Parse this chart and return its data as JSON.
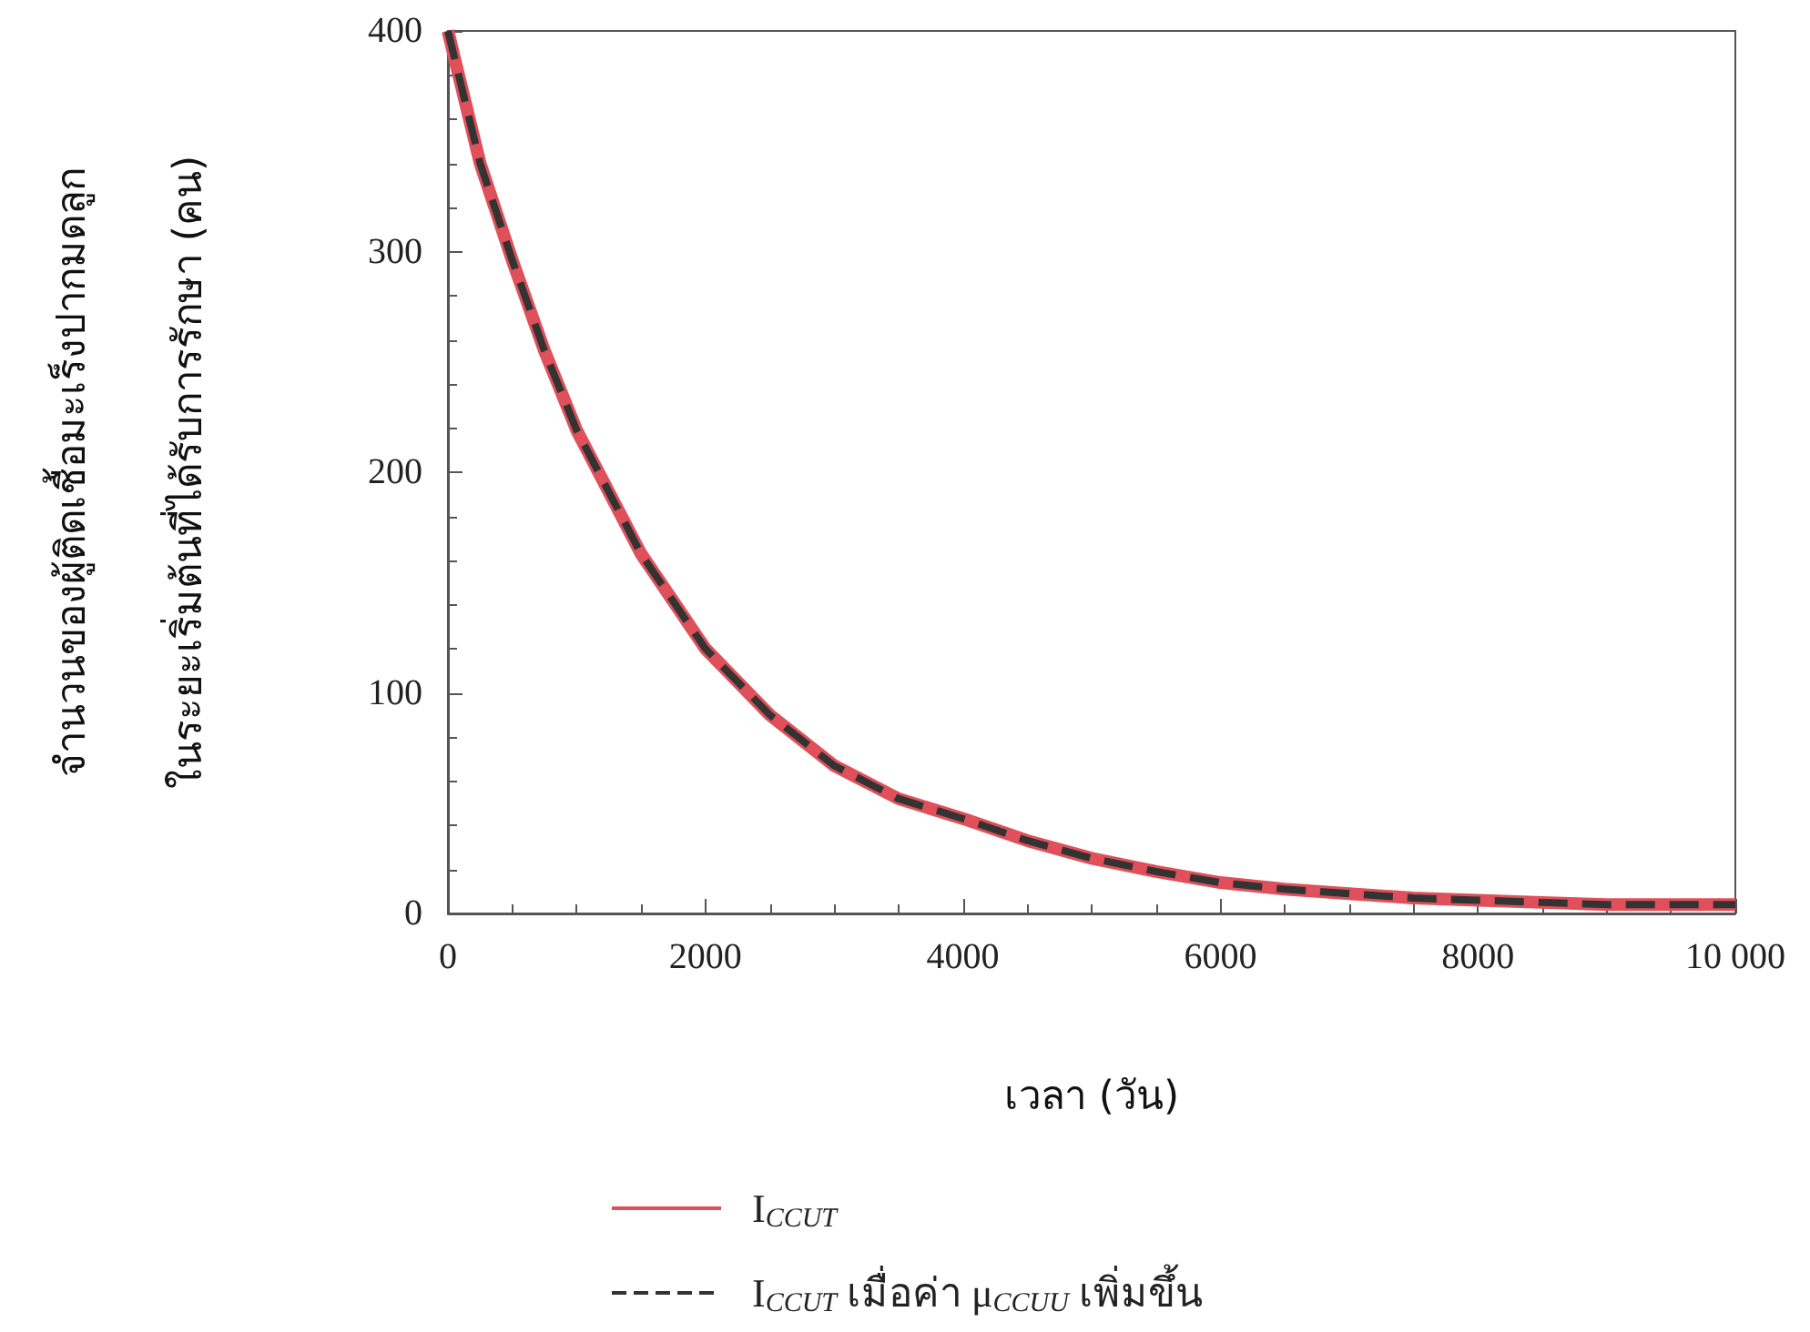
{
  "chart_data": {
    "type": "line",
    "xlabel": "เวลา (วัน)",
    "ylabel": "จำนวนของผู้ติดเชื้อมะเร็งปากมดลูก\nในระยะเริ่มต้นที่ได้รับการรักษา (คน)",
    "x": [
      0,
      250,
      500,
      750,
      1000,
      1500,
      2000,
      2500,
      3000,
      3500,
      4000,
      4500,
      5000,
      5500,
      6000,
      6500,
      7000,
      7500,
      8000,
      8500,
      9000,
      9500,
      10000
    ],
    "series": [
      {
        "name": "I$_{CCUT}$",
        "color": "#e0505a",
        "line_style": "solid",
        "values": [
          400,
          340,
          296,
          255,
          219,
          163,
          120,
          90,
          67,
          52,
          43,
          33,
          25,
          19,
          14,
          11,
          9,
          7,
          6,
          5,
          4,
          4,
          4
        ]
      },
      {
        "name": "I$_{CCUT}$ เมื่อค่า μ$_{CCUU}$ เพิ่มขึ้น",
        "color": "#333333",
        "line_style": "dashed",
        "values": [
          400,
          340,
          296,
          255,
          219,
          163,
          120,
          90,
          67,
          52,
          43,
          33,
          25,
          19,
          14,
          11,
          9,
          7,
          6,
          5,
          4,
          4,
          4
        ]
      }
    ],
    "xlim": [
      0,
      10000
    ],
    "xticks": [
      0,
      2000,
      4000,
      6000,
      8000,
      {
        "value": 10000,
        "label": "10 000"
      }
    ],
    "ylim": [
      0,
      400
    ],
    "yticks": [
      0,
      100,
      200,
      300,
      400
    ],
    "grid": false,
    "legend": "bottom",
    "marker": "none"
  }
}
